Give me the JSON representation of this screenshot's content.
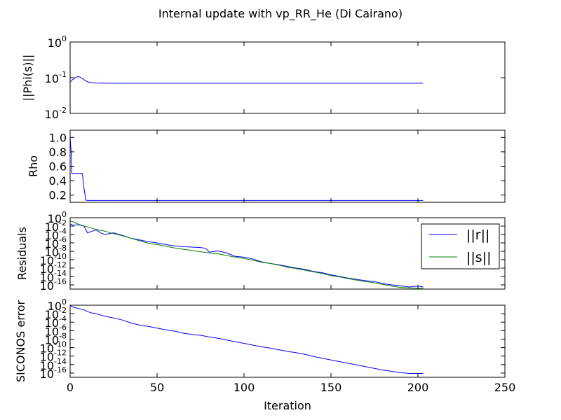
{
  "figure_title": "Internal update with vp_RR_He (Di Cairano)",
  "chart_data": [
    {
      "type": "line",
      "scale": "log",
      "ylabel": "||Phi(s)||",
      "xlim": [
        0,
        250
      ],
      "ylim_exp": [
        -2,
        0
      ],
      "yticks": [
        {
          "base": "10",
          "exp": "0",
          "value": 1
        },
        {
          "base": "10",
          "exp": "-1",
          "value": 0.1
        },
        {
          "base": "10",
          "exp": "-2",
          "value": 0.01
        }
      ],
      "series": [
        {
          "color": "#0000ff",
          "x": [
            0,
            1,
            2,
            3,
            4,
            5,
            6,
            7,
            8,
            9,
            10,
            12,
            15,
            20,
            30,
            50,
            100,
            150,
            203
          ],
          "y": [
            0.075,
            0.085,
            0.092,
            0.1,
            0.106,
            0.107,
            0.102,
            0.095,
            0.088,
            0.082,
            0.077,
            0.073,
            0.071,
            0.07,
            0.07,
            0.07,
            0.07,
            0.07,
            0.07
          ]
        }
      ]
    },
    {
      "type": "line",
      "scale": "linear",
      "ylabel": "Rho",
      "xlim": [
        0,
        250
      ],
      "ylim": [
        0.1,
        1.1
      ],
      "yticks": [
        {
          "label": "1.0",
          "value": 1.0
        },
        {
          "label": "0.8",
          "value": 0.8
        },
        {
          "label": "0.6",
          "value": 0.6
        },
        {
          "label": "0.4",
          "value": 0.4
        },
        {
          "label": "0.2",
          "value": 0.2
        }
      ],
      "series": [
        {
          "color": "#0000ff",
          "x": [
            0,
            0.6,
            1,
            2,
            3,
            4,
            5,
            6,
            7,
            8,
            9,
            10,
            203
          ],
          "y": [
            1.0,
            0.8,
            0.5,
            0.5,
            0.5,
            0.5,
            0.5,
            0.5,
            0.5,
            0.3,
            0.13,
            0.125,
            0.125
          ]
        }
      ]
    },
    {
      "type": "line",
      "scale": "log",
      "ylabel": "Residuals",
      "xlim": [
        0,
        250
      ],
      "ylim_exp": [
        -17,
        0
      ],
      "yticks": [
        {
          "base": "10",
          "exp": "0",
          "value": 0
        },
        {
          "base": "10",
          "exp": "-2",
          "value": -2
        },
        {
          "base": "10",
          "exp": "-4",
          "value": -4
        },
        {
          "base": "10",
          "exp": "-6",
          "value": -6
        },
        {
          "base": "10",
          "exp": "-8",
          "value": -8
        },
        {
          "base": "10",
          "exp": "-10",
          "value": -10
        },
        {
          "base": "10",
          "exp": "-12",
          "value": -12
        },
        {
          "base": "10",
          "exp": "-14",
          "value": -14
        },
        {
          "base": "10",
          "exp": "-16",
          "value": -16
        }
      ],
      "legend": {
        "placement": "right",
        "entries": [
          {
            "label": "||r||",
            "color": "#0000ff"
          },
          {
            "label": "||s||",
            "color": "#008000"
          }
        ]
      },
      "series": [
        {
          "name": "||r||",
          "color": "#0000ff",
          "x": [
            0,
            2,
            5,
            8,
            10,
            12,
            15,
            18,
            20,
            25,
            30,
            35,
            40,
            45,
            50,
            55,
            60,
            65,
            70,
            75,
            78,
            80,
            85,
            90,
            95,
            100,
            105,
            110,
            115,
            120,
            125,
            130,
            135,
            140,
            145,
            150,
            155,
            160,
            165,
            170,
            175,
            180,
            185,
            190,
            195,
            200,
            203
          ],
          "y": [
            -1.5,
            -1.8,
            -1.7,
            -2.0,
            -3.6,
            -3.3,
            -2.9,
            -3.7,
            -4.0,
            -3.6,
            -4.2,
            -4.9,
            -5.3,
            -5.7,
            -6.0,
            -6.4,
            -6.7,
            -6.9,
            -7.0,
            -7.1,
            -7.3,
            -8.2,
            -7.9,
            -8.4,
            -9.2,
            -9.4,
            -9.8,
            -10.5,
            -10.9,
            -11.2,
            -11.6,
            -12.0,
            -12.3,
            -12.8,
            -13.1,
            -13.6,
            -14.0,
            -14.4,
            -14.7,
            -15.0,
            -15.2,
            -15.7,
            -16.0,
            -16.2,
            -16.5,
            -16.3,
            -16.5
          ]
        },
        {
          "name": "||s||",
          "color": "#008000",
          "x": [
            0,
            2,
            5,
            10,
            15,
            20,
            25,
            30,
            35,
            40,
            45,
            50,
            55,
            60,
            65,
            70,
            75,
            80,
            85,
            90,
            95,
            100,
            105,
            110,
            115,
            120,
            125,
            130,
            135,
            140,
            145,
            150,
            155,
            160,
            165,
            170,
            175,
            180,
            185,
            190,
            195,
            200,
            203
          ],
          "y": [
            -0.8,
            -1.0,
            -1.6,
            -2.2,
            -2.8,
            -3.2,
            -3.8,
            -4.3,
            -4.9,
            -5.5,
            -6.1,
            -6.4,
            -6.8,
            -7.2,
            -7.5,
            -7.8,
            -8.1,
            -8.4,
            -8.6,
            -9.0,
            -9.4,
            -9.7,
            -10.1,
            -10.6,
            -10.9,
            -11.3,
            -11.8,
            -12.1,
            -12.5,
            -12.9,
            -13.3,
            -13.8,
            -14.1,
            -14.5,
            -14.9,
            -15.2,
            -15.5,
            -15.9,
            -16.3,
            -16.6,
            -16.7,
            -16.8,
            -16.8
          ]
        }
      ]
    },
    {
      "type": "line",
      "scale": "log",
      "ylabel": "SICONOS error",
      "xlabel": "Iteration",
      "xlim": [
        0,
        250
      ],
      "ylim_exp": [
        -17,
        0
      ],
      "xticks": [
        "0",
        "50",
        "100",
        "150",
        "200",
        "250"
      ],
      "yticks": [
        {
          "base": "10",
          "exp": "0",
          "value": 0
        },
        {
          "base": "10",
          "exp": "-2",
          "value": -2
        },
        {
          "base": "10",
          "exp": "-4",
          "value": -4
        },
        {
          "base": "10",
          "exp": "-6",
          "value": -6
        },
        {
          "base": "10",
          "exp": "-8",
          "value": -8
        },
        {
          "base": "10",
          "exp": "-10",
          "value": -10
        },
        {
          "base": "10",
          "exp": "-12",
          "value": -12
        },
        {
          "base": "10",
          "exp": "-14",
          "value": -14
        },
        {
          "base": "10",
          "exp": "-16",
          "value": -16
        }
      ],
      "series": [
        {
          "color": "#0000ff",
          "x": [
            0,
            2,
            5,
            8,
            10,
            12,
            15,
            20,
            25,
            30,
            35,
            40,
            45,
            50,
            55,
            60,
            65,
            70,
            75,
            80,
            85,
            90,
            95,
            100,
            105,
            110,
            115,
            120,
            125,
            130,
            135,
            140,
            145,
            150,
            155,
            160,
            165,
            170,
            175,
            180,
            185,
            190,
            195,
            200,
            203
          ],
          "y": [
            -0.1,
            -0.5,
            -0.8,
            -1.1,
            -1.5,
            -1.8,
            -2.0,
            -2.6,
            -3.0,
            -3.5,
            -4.2,
            -4.7,
            -5.0,
            -5.4,
            -5.8,
            -6.1,
            -6.6,
            -6.9,
            -7.1,
            -7.5,
            -7.8,
            -8.2,
            -8.6,
            -9.0,
            -9.4,
            -9.8,
            -10.1,
            -10.5,
            -10.9,
            -11.2,
            -11.6,
            -12.1,
            -12.5,
            -12.9,
            -13.3,
            -13.7,
            -14.1,
            -14.5,
            -14.9,
            -15.3,
            -15.6,
            -15.9,
            -16.1,
            -16.1,
            -16.1
          ]
        }
      ]
    }
  ]
}
